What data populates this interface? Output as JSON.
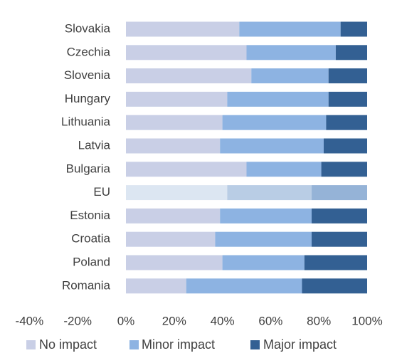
{
  "chart_data": {
    "type": "stacked_barh",
    "categories": [
      "Slovakia",
      "Czechia",
      "Slovenia",
      "Hungary",
      "Lithuania",
      "Latvia",
      "Bulgaria",
      "EU",
      "Estonia",
      "Croatia",
      "Poland",
      "Romania"
    ],
    "series": [
      {
        "name": "No impact",
        "color": "#c9cfe6",
        "highlight_color": "#dce6f2",
        "values": [
          47,
          50,
          52,
          42,
          40,
          39,
          50,
          42,
          39,
          37,
          40,
          25
        ]
      },
      {
        "name": "Minor impact",
        "color": "#8db3e2",
        "highlight_color": "#b9cde5",
        "values": [
          42,
          37,
          32,
          42,
          43,
          43,
          31,
          35,
          38,
          40,
          34,
          48
        ]
      },
      {
        "name": "Major impact",
        "color": "#336093",
        "highlight_color": "#95b3d7",
        "values": [
          11,
          13,
          16,
          16,
          17,
          18,
          19,
          23,
          23,
          23,
          26,
          27
        ]
      }
    ],
    "highlight": "EU",
    "xlim": [
      -40,
      100
    ],
    "xticks": [
      {
        "value": -40,
        "label": "-40%"
      },
      {
        "value": -20,
        "label": "-20%"
      },
      {
        "value": 0,
        "label": "0%"
      },
      {
        "value": 20,
        "label": "20%"
      },
      {
        "value": 40,
        "label": "40%"
      },
      {
        "value": 60,
        "label": "60%"
      },
      {
        "value": 80,
        "label": "80%"
      },
      {
        "value": 100,
        "label": "100%"
      }
    ],
    "grid": false,
    "legend": "bottom"
  }
}
